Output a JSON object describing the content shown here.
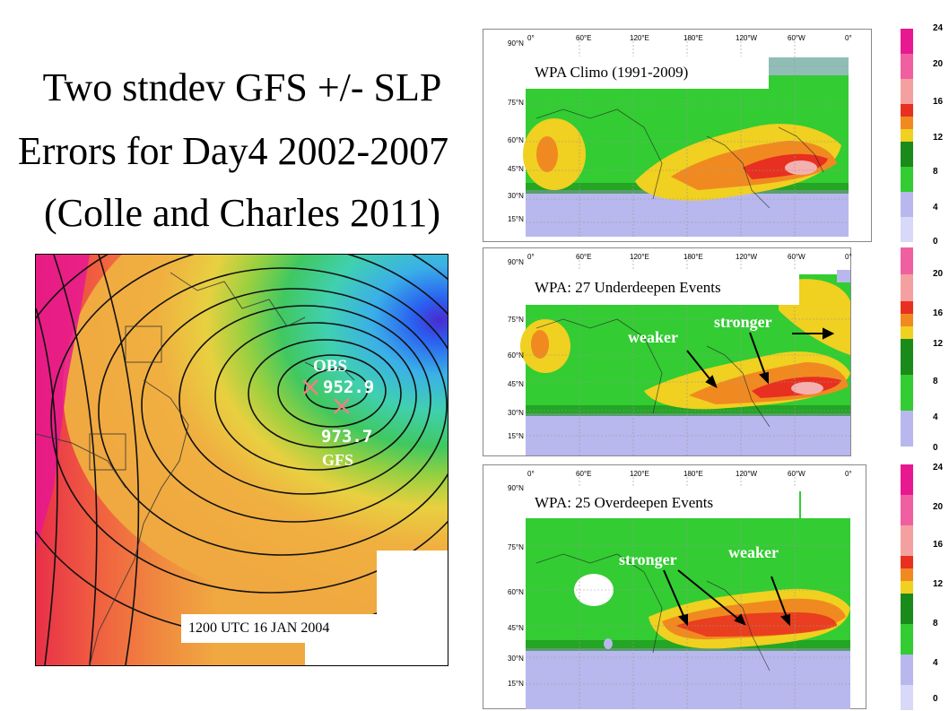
{
  "title": {
    "line1": "Two stndev GFS +/- SLP",
    "line2": "Errors for Day4  2002-2007",
    "line3": "(Colle and Charles 2011)"
  },
  "storm_map": {
    "obs_label": "OBS",
    "obs_value": "952.9",
    "gfs_value": "973.7",
    "gfs_label": "GFS",
    "date_label": "1200 UTC 16 JAN 2004"
  },
  "panels": [
    {
      "title": "WPA Climo (1991-2009)",
      "lon_labels": [
        "0°",
        "60°E",
        "120°E",
        "180°E",
        "120°W",
        "60°W",
        "0°"
      ],
      "lat_labels": [
        "90°N",
        "75°N",
        "60°N",
        "45°N",
        "30°N",
        "15°N"
      ],
      "colorbar_ticks": [
        "24",
        "20",
        "16",
        "12",
        "8",
        "4",
        "0"
      ],
      "annotations": []
    },
    {
      "title": "WPA: 27 Underdeepen Events",
      "lon_labels": [
        "0°",
        "60°E",
        "120°E",
        "180°E",
        "120°W",
        "60°W",
        "0°"
      ],
      "lat_labels": [
        "90°N",
        "75°N",
        "60°N",
        "45°N",
        "30°N",
        "15°N"
      ],
      "colorbar_ticks": [
        "20",
        "16",
        "12",
        "8",
        "4",
        "0"
      ],
      "annotations": [
        "weaker",
        "stronger"
      ]
    },
    {
      "title": "WPA: 25 Overdeepen Events",
      "lon_labels": [
        "0°",
        "60°E",
        "120°E",
        "180°E",
        "120°W",
        "60°W",
        "0°"
      ],
      "lat_labels": [
        "90°N",
        "75°N",
        "60°N",
        "45°N",
        "30°N",
        "15°N"
      ],
      "colorbar_ticks": [
        "24",
        "20",
        "16",
        "12",
        "8",
        "4",
        "0"
      ],
      "annotations": [
        "stronger",
        "weaker"
      ]
    }
  ],
  "colors": {
    "low_purple": "#b8b8ee",
    "green_light": "#33cc33",
    "green_dark": "#1a8a1a",
    "yellow": "#f0d020",
    "orange": "#f08a20",
    "red": "#e83020",
    "pink": "#f5b0b0",
    "magenta": "#e81890"
  }
}
